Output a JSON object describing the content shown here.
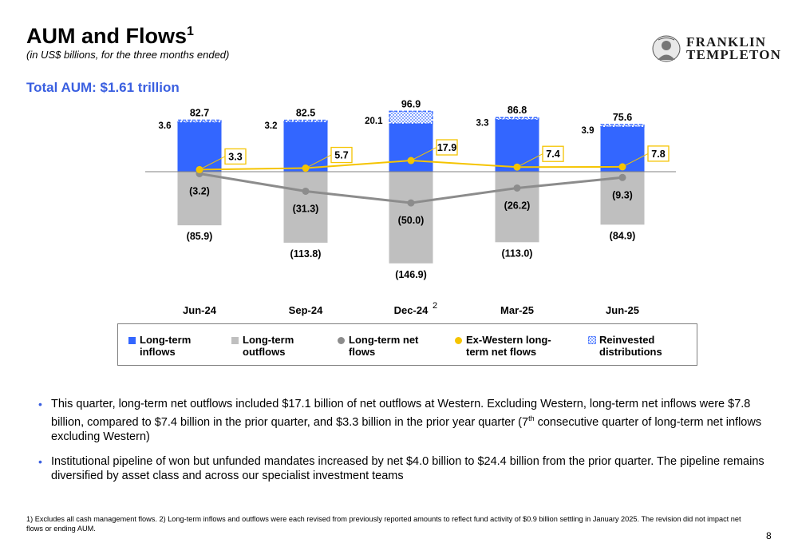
{
  "header": {
    "title": "AUM and Flows",
    "title_sup": "1",
    "subtitle": "(in US$ billions, for the three months ended)",
    "logo_line1": "FRANKLIN",
    "logo_line2": "TEMPLETON"
  },
  "total_aum": "Total AUM: $1.61 trillion",
  "chart_data": {
    "type": "bar",
    "categories": [
      "Jun-24",
      "Sep-24",
      "Dec-24",
      "Mar-25",
      "Jun-25"
    ],
    "category_note": {
      "index": 2,
      "text": "2"
    },
    "series": [
      {
        "name": "Long-term inflows",
        "type": "bar",
        "color": "#3366ff",
        "values": [
          79.1,
          79.3,
          76.8,
          83.5,
          71.7
        ]
      },
      {
        "name": "Reinvested distributions",
        "type": "bar-stacked",
        "color": "#3366ff",
        "pattern": "dotted",
        "values": [
          3.6,
          3.2,
          20.1,
          3.3,
          3.9
        ],
        "labels": [
          "3.6",
          "3.2",
          "20.1",
          "3.3",
          "3.9"
        ]
      },
      {
        "name": "Long-term outflows",
        "type": "bar",
        "color": "#bfbfbf",
        "values": [
          -85.9,
          -113.8,
          -146.9,
          -113.0,
          -84.9
        ],
        "labels": [
          "(85.9)",
          "(113.8)",
          "(146.9)",
          "(113.0)",
          "(84.9)"
        ]
      },
      {
        "name": "Long-term net flows",
        "type": "line",
        "color": "#8c8c8c",
        "values": [
          -3.2,
          -31.3,
          -50.0,
          -26.2,
          -9.3
        ],
        "labels": [
          "(3.2)",
          "(31.3)",
          "(50.0)",
          "(26.2)",
          "(9.3)"
        ]
      },
      {
        "name": "Ex-Western long-term net flows",
        "type": "line",
        "color": "#f5c400",
        "values": [
          3.3,
          5.7,
          17.9,
          7.4,
          7.8
        ],
        "labels": [
          "3.3",
          "5.7",
          "17.9",
          "7.4",
          "7.8"
        ]
      }
    ],
    "totals": {
      "values": [
        82.7,
        82.5,
        96.9,
        86.8,
        75.6
      ],
      "labels": [
        "82.7",
        "82.5",
        "96.9",
        "86.8",
        "75.6"
      ]
    },
    "ylim": [
      -150,
      100
    ],
    "grid": false,
    "legend_position": "bottom",
    "legend": [
      {
        "label": "Long-term\ninflows",
        "swatch": "square",
        "color": "#3366ff"
      },
      {
        "label": "Long-term\noutflows",
        "swatch": "square",
        "color": "#bfbfbf"
      },
      {
        "label": "Long-term net\nflows",
        "swatch": "dot",
        "color": "#8c8c8c"
      },
      {
        "label": "Ex-Western long-\nterm net flows",
        "swatch": "dot",
        "color": "#f5c400"
      },
      {
        "label": "Reinvested\ndistributions",
        "swatch": "dotted-square",
        "color": "#3366ff"
      }
    ]
  },
  "bullets": [
    {
      "pre": "This quarter, long-term net outflows included $17.1 billion of net outflows at Western. Excluding Western, long-term net inflows were $7.8 billion, compared to $7.4 billion in the prior quarter, and $3.3 billion in the prior year quarter (7",
      "sup": "th",
      "post": " consecutive quarter of long-term net inflows excluding Western)"
    },
    {
      "pre": "Institutional pipeline of won but unfunded mandates increased by net $4.0 billion to $24.4 billion from the prior quarter. The pipeline remains diversified by asset class and across our specialist investment teams",
      "sup": "",
      "post": ""
    }
  ],
  "footnote": "1) Excludes all cash management flows. 2) Long-term inflows and outflows were each revised from previously reported amounts to reflect fund activity of $0.9 billion settling in January 2025. The revision did not impact net flows or ending AUM.",
  "page_number": "8",
  "colors": {
    "accent": "#3a5fe0",
    "inflow": "#3366ff",
    "outflow": "#bfbfbf",
    "net": "#8c8c8c",
    "exwestern": "#f5c400"
  }
}
